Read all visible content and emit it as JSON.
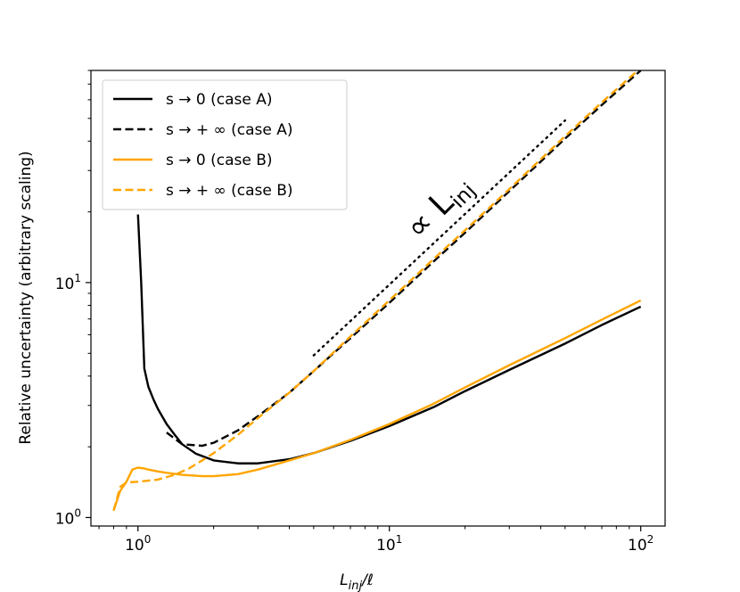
{
  "chart_data": {
    "type": "line",
    "title": "",
    "xlabel_main": "L",
    "xlabel_sub": "inj",
    "xlabel_tail": "/ℓ",
    "ylabel": "Relative uncertainty (arbitrary scaling)",
    "xscale": "log",
    "yscale": "log",
    "xlim": [
      0.65,
      125
    ],
    "ylim": [
      0.92,
      80
    ],
    "x_ticks": [
      {
        "value": 1,
        "base": "10",
        "exp": "0"
      },
      {
        "value": 10,
        "base": "10",
        "exp": "1"
      },
      {
        "value": 100,
        "base": "10",
        "exp": "2"
      }
    ],
    "y_ticks": [
      {
        "value": 1,
        "base": "10",
        "exp": "0"
      },
      {
        "value": 10,
        "base": "10",
        "exp": "1"
      }
    ],
    "legend_position": "top-left",
    "annotation": {
      "prefix": "∝ L",
      "sub": "inj",
      "reference_line": {
        "x": [
          5,
          50
        ],
        "y": [
          4.9,
          49
        ]
      }
    },
    "series": [
      {
        "name": "s → 0 (case A)",
        "color": "#000000",
        "dash": "solid",
        "x": [
          1.0,
          1.03,
          1.06,
          1.1,
          1.15,
          1.2,
          1.3,
          1.4,
          1.5,
          1.7,
          2.0,
          2.5,
          3.0,
          4.0,
          5.0,
          7.0,
          10,
          15,
          20,
          30,
          50,
          70,
          100
        ],
        "y": [
          19.5,
          10.0,
          4.3,
          3.6,
          3.2,
          2.9,
          2.5,
          2.25,
          2.05,
          1.87,
          1.75,
          1.7,
          1.7,
          1.77,
          1.88,
          2.12,
          2.45,
          2.95,
          3.45,
          4.25,
          5.5,
          6.6,
          7.9
        ]
      },
      {
        "name": "s → + ∞ (case A)",
        "color": "#000000",
        "dash": "dashed",
        "x": [
          1.3,
          1.5,
          1.8,
          2.0,
          2.5,
          3.0,
          4.0,
          5.0,
          7.0,
          10,
          15,
          20,
          30,
          50,
          70,
          100
        ],
        "y": [
          2.3,
          2.05,
          2.02,
          2.08,
          2.35,
          2.7,
          3.4,
          4.2,
          5.8,
          8.2,
          12.3,
          16.3,
          24.5,
          41,
          57,
          80
        ]
      },
      {
        "name": "s → 0 (case B)",
        "color": "#FFA500",
        "dash": "solid",
        "x": [
          0.8,
          0.85,
          0.9,
          0.95,
          1.0,
          1.05,
          1.1,
          1.2,
          1.3,
          1.5,
          1.8,
          2.0,
          2.5,
          3.0,
          4.0,
          5.0,
          7.0,
          10,
          15,
          20,
          30,
          50,
          70,
          100
        ],
        "y": [
          1.07,
          1.3,
          1.42,
          1.6,
          1.63,
          1.62,
          1.6,
          1.57,
          1.55,
          1.52,
          1.5,
          1.5,
          1.53,
          1.6,
          1.75,
          1.88,
          2.14,
          2.5,
          3.05,
          3.58,
          4.45,
          5.8,
          6.95,
          8.4
        ]
      },
      {
        "name": "s → + ∞ (case B)",
        "color": "#FFA500",
        "dash": "dashed",
        "x": [
          0.8,
          0.85,
          0.9,
          1.0,
          1.2,
          1.4,
          1.6,
          1.8,
          2.0,
          2.5,
          3.0,
          4.0,
          5.0,
          7.0,
          10,
          15,
          20,
          30,
          50,
          70,
          100
        ],
        "y": [
          1.07,
          1.35,
          1.41,
          1.42,
          1.45,
          1.52,
          1.62,
          1.75,
          1.88,
          2.25,
          2.65,
          3.4,
          4.2,
          5.9,
          8.4,
          12.6,
          16.7,
          25,
          42,
          58.5,
          82
        ]
      }
    ]
  }
}
